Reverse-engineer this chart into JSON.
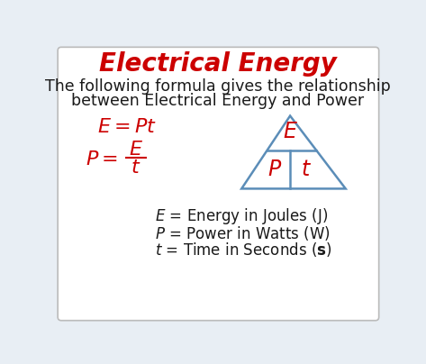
{
  "title": "Electrical Energy",
  "title_color": "#cc0000",
  "title_fontsize": 20,
  "subtitle_line1": "The following formula gives the relationship",
  "subtitle_line2": "between Electrical Energy and Power",
  "subtitle_color": "#1a1a1a",
  "subtitle_fontsize": 12.5,
  "formula_color": "#cc0000",
  "formula_fontsize": 16,
  "legend_color": "#1a1a1a",
  "legend_fontsize": 12,
  "triangle_color": "#5b8db8",
  "triangle_linewidth": 1.8,
  "background_color": "#e8eef4",
  "box_background": "#ffffff",
  "triangle_label_color": "#cc0000",
  "triangle_label_fontsize": 17
}
